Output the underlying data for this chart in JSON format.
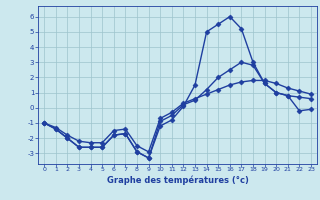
{
  "xlabel": "Graphe des températures (°c)",
  "x": [
    0,
    1,
    2,
    3,
    4,
    5,
    6,
    7,
    8,
    9,
    10,
    11,
    12,
    13,
    14,
    15,
    16,
    17,
    18,
    19,
    20,
    21,
    22,
    23
  ],
  "line1": [
    -1.0,
    -1.4,
    -2.0,
    -2.6,
    -2.6,
    -2.6,
    -1.8,
    -1.7,
    -2.9,
    -3.3,
    -1.2,
    -0.8,
    0.1,
    1.5,
    5.0,
    5.5,
    6.0,
    5.2,
    3.0,
    1.6,
    1.0,
    0.8,
    -0.2,
    -0.1
  ],
  "line2": [
    -1.0,
    -1.4,
    -2.0,
    -2.6,
    -2.6,
    -2.6,
    -1.8,
    -1.7,
    -2.9,
    -3.3,
    -0.9,
    -0.5,
    0.2,
    0.5,
    1.2,
    2.0,
    2.5,
    3.0,
    2.8,
    1.6,
    1.0,
    0.8,
    0.7,
    0.6
  ],
  "line3": [
    -1.0,
    -1.3,
    -1.8,
    -2.2,
    -2.3,
    -2.3,
    -1.5,
    -1.4,
    -2.5,
    -2.9,
    -0.7,
    -0.3,
    0.3,
    0.6,
    0.9,
    1.2,
    1.5,
    1.7,
    1.8,
    1.8,
    1.6,
    1.3,
    1.1,
    0.9
  ],
  "ylim": [
    -3.7,
    6.7
  ],
  "xlim": [
    -0.5,
    23.5
  ],
  "yticks": [
    -3,
    -2,
    -1,
    0,
    1,
    2,
    3,
    4,
    5,
    6
  ],
  "xticks": [
    0,
    1,
    2,
    3,
    4,
    5,
    6,
    7,
    8,
    9,
    10,
    11,
    12,
    13,
    14,
    15,
    16,
    17,
    18,
    19,
    20,
    21,
    22,
    23
  ],
  "line_color": "#1f3fa0",
  "bg_color": "#cce8ee",
  "grid_color": "#9dc4cc",
  "marker": "D",
  "marker_size": 2.5,
  "linewidth": 1.0
}
